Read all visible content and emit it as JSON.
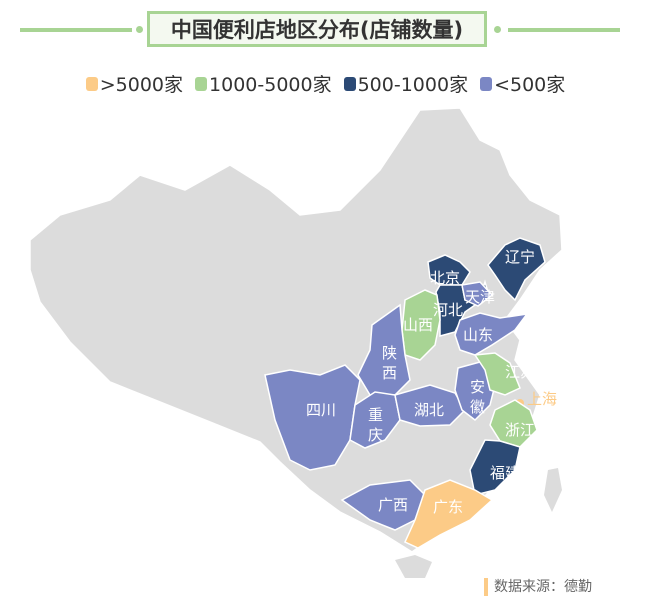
{
  "title": "中国便利店地区分布(店铺数量)",
  "legend": [
    {
      "label": ">5000家",
      "color": "#fccb87"
    },
    {
      "label": "1000-5000家",
      "color": "#a8d494"
    },
    {
      "label": "500-1000家",
      "color": "#2c4a75"
    },
    {
      "label": "<500家",
      "color": "#7b87c4"
    }
  ],
  "base_color": "#dcdcdc",
  "provinces": [
    {
      "name": "辽宁",
      "category": "500-1000家"
    },
    {
      "name": "北京",
      "category": "500-1000家"
    },
    {
      "name": "河北",
      "category": "500-1000家"
    },
    {
      "name": "天津",
      "category": "<500家"
    },
    {
      "name": "山西",
      "category": "1000-5000家"
    },
    {
      "name": "山东",
      "category": "<500家"
    },
    {
      "name": "陕西",
      "category": "<500家"
    },
    {
      "name": "四川",
      "category": "<500家"
    },
    {
      "name": "重庆",
      "category": "<500家"
    },
    {
      "name": "湖北",
      "category": "<500家"
    },
    {
      "name": "安徽",
      "category": "<500家"
    },
    {
      "name": "江苏",
      "category": "1000-5000家"
    },
    {
      "name": "上海",
      "category": ">5000家"
    },
    {
      "name": "浙江",
      "category": "1000-5000家"
    },
    {
      "name": "福建",
      "category": "500-1000家"
    },
    {
      "name": "广西",
      "category": "<500家"
    },
    {
      "name": "广东",
      "category": ">5000家"
    }
  ],
  "source": "数据来源：德勤"
}
